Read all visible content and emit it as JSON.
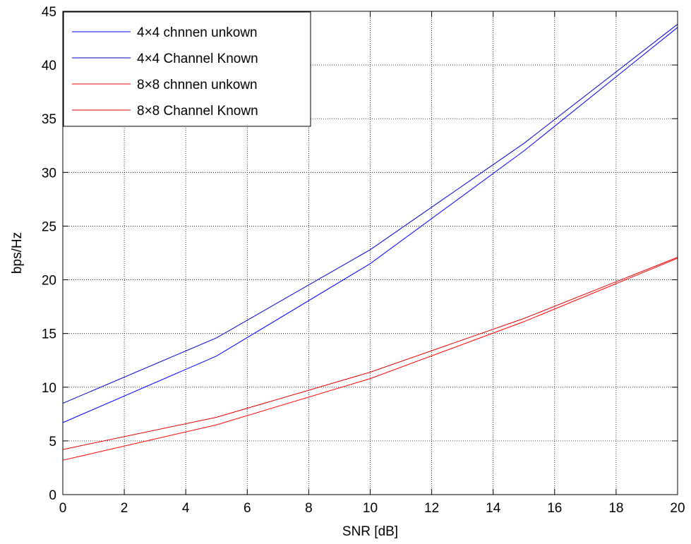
{
  "chart_data": {
    "type": "line",
    "xlabel": "SNR [dB]",
    "ylabel": "bps/Hz",
    "xlim": [
      0,
      20
    ],
    "ylim": [
      0,
      45
    ],
    "xticks": [
      0,
      2,
      4,
      6,
      8,
      10,
      12,
      14,
      16,
      18,
      20
    ],
    "yticks": [
      0,
      5,
      10,
      15,
      20,
      25,
      30,
      35,
      40,
      45
    ],
    "xtick_labels": [
      "0",
      "2",
      "4",
      "6",
      "8",
      "10",
      "12",
      "14",
      "16",
      "18",
      "20"
    ],
    "ytick_labels": [
      "0",
      "5",
      "10",
      "15",
      "20",
      "25",
      "30",
      "35",
      "40",
      "45"
    ],
    "grid": true,
    "legend_position": "top-left",
    "x": [
      0,
      5,
      10,
      15,
      20
    ],
    "series": [
      {
        "name": "4×4 chnnen unkown",
        "color": "#0000ff",
        "values": [
          6.7,
          12.9,
          21.5,
          32.0,
          43.5
        ]
      },
      {
        "name": "4×4 Channel Known",
        "color": "#0000cc",
        "values": [
          8.5,
          14.6,
          22.8,
          32.7,
          43.8
        ]
      },
      {
        "name": "8×8 chnnen unkown",
        "color": "#ff0000",
        "values": [
          3.2,
          6.5,
          10.8,
          16.1,
          22.0
        ]
      },
      {
        "name": "8×8 Channel Known",
        "color": "#e00000",
        "values": [
          4.2,
          7.2,
          11.4,
          16.4,
          22.1
        ]
      }
    ]
  }
}
